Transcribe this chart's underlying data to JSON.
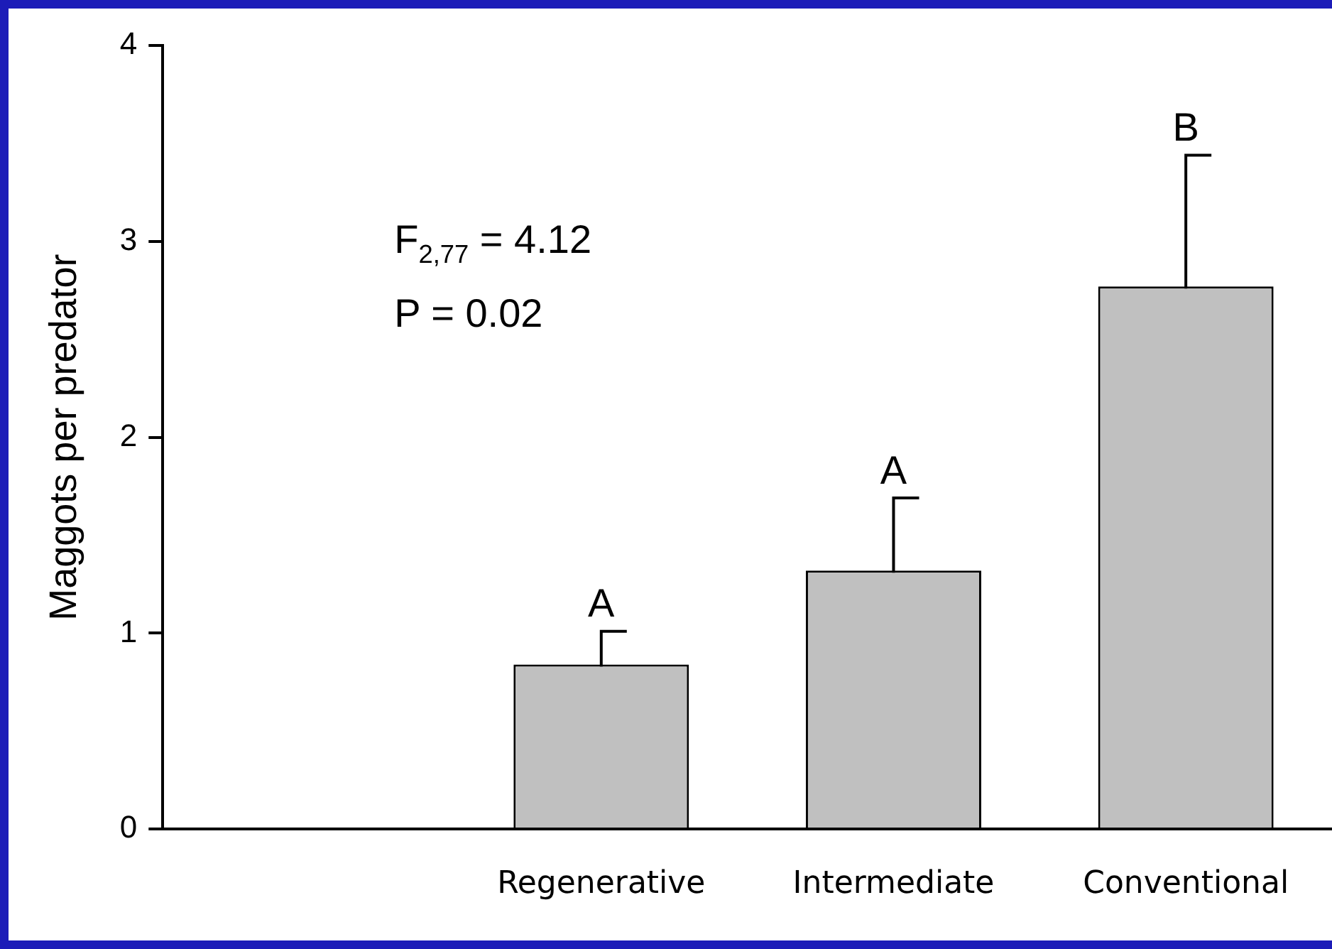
{
  "chart_data": {
    "type": "bar",
    "ylabel": "Maggots per predator",
    "categories": [
      null,
      "Regenerative",
      "Intermediate",
      "Conventional"
    ],
    "values": [
      null,
      0.84,
      1.32,
      2.77
    ],
    "errors": [
      null,
      0.17,
      0.37,
      0.67
    ],
    "color": "#c0c0c0",
    "ylim": [
      0,
      4
    ],
    "yticks": [
      0,
      1,
      2,
      3,
      4
    ],
    "grid": false,
    "legend": false,
    "annotations": [
      "F$_{2,77}$ = 4.12",
      "P = 0.02",
      "A",
      "A",
      "B"
    ]
  }
}
